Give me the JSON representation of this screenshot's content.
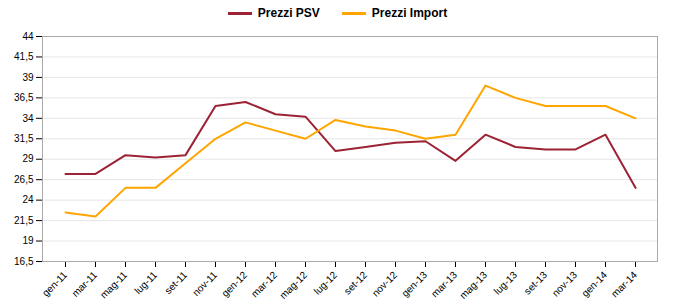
{
  "chart_data": {
    "type": "line",
    "categories": [
      "gen-11",
      "mar-11",
      "mag-11",
      "lug-11",
      "set-11",
      "nov-11",
      "gen-12",
      "mar-12",
      "mag-12",
      "lug-12",
      "set-12",
      "nov-12",
      "gen-13",
      "mar-13",
      "mag-13",
      "lug-13",
      "set-13",
      "nov-13",
      "gen-14",
      "mar-14"
    ],
    "series": [
      {
        "name": "Prezzi PSV",
        "color": "#9B2335",
        "values": [
          27.2,
          27.2,
          29.5,
          29.2,
          29.5,
          35.5,
          36.0,
          34.5,
          34.2,
          30.0,
          30.5,
          31.0,
          31.2,
          28.8,
          32.0,
          30.5,
          30.2,
          30.2,
          32.0,
          25.5
        ]
      },
      {
        "name": "Prezzi Import",
        "color": "#FFA500",
        "values": [
          22.5,
          22.0,
          25.5,
          25.5,
          28.5,
          31.5,
          33.5,
          32.5,
          31.5,
          33.8,
          33.0,
          32.5,
          31.5,
          32.0,
          38.0,
          36.5,
          35.5,
          35.5,
          35.5,
          34.0
        ]
      }
    ],
    "ylim": [
      16.5,
      44
    ],
    "yticks": [
      {
        "value": 16.5,
        "label": "16,5"
      },
      19,
      {
        "value": 21.5,
        "label": "21,5"
      },
      24,
      {
        "value": 26.5,
        "label": "26,5"
      },
      29,
      {
        "value": 31.5,
        "label": "31,5"
      },
      34,
      {
        "value": 36.5,
        "label": "36,5"
      },
      39,
      {
        "value": 41.5,
        "label": "41,5"
      },
      44
    ],
    "grid": true,
    "legend": "top"
  }
}
